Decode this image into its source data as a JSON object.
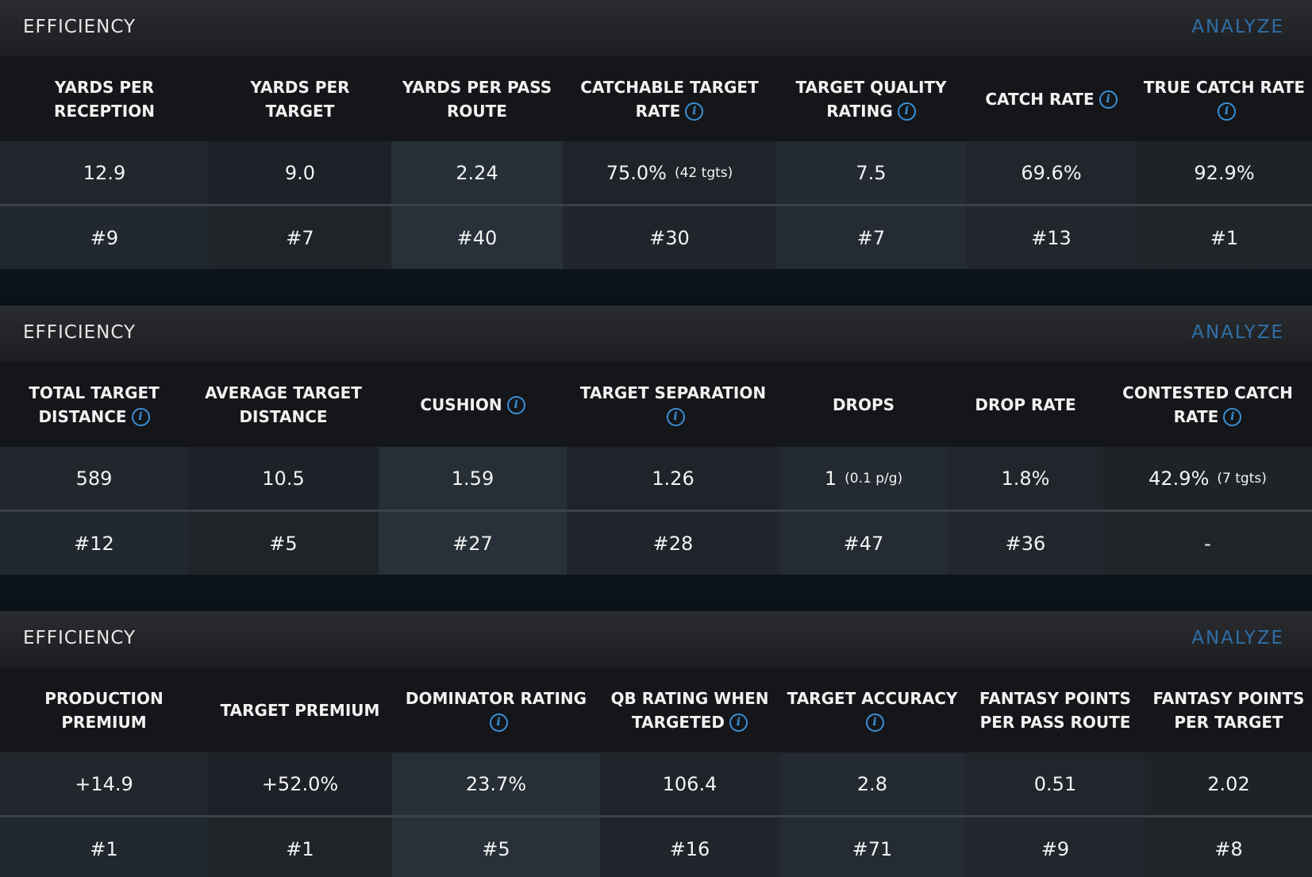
{
  "panels": [
    {
      "title": "EFFICIENCY",
      "action": "ANALYZE",
      "columns": [
        {
          "label": "YARDS PER RECEPTION",
          "info": false
        },
        {
          "label": "YARDS PER TARGET",
          "info": false
        },
        {
          "label": "YARDS PER PASS ROUTE",
          "info": false
        },
        {
          "label": "CATCHABLE TARGET RATE",
          "info": true
        },
        {
          "label": "TARGET QUALITY RATING",
          "info": true
        },
        {
          "label": "CATCH RATE",
          "info": true
        },
        {
          "label": "TRUE CATCH RATE",
          "info": true
        }
      ],
      "values": [
        {
          "main": "12.9",
          "sub": ""
        },
        {
          "main": "9.0",
          "sub": ""
        },
        {
          "main": "2.24",
          "sub": ""
        },
        {
          "main": "75.0%",
          "sub": "(42 tgts)"
        },
        {
          "main": "7.5",
          "sub": ""
        },
        {
          "main": "69.6%",
          "sub": ""
        },
        {
          "main": "92.9%",
          "sub": ""
        }
      ],
      "ranks": [
        "#9",
        "#7",
        "#40",
        "#30",
        "#7",
        "#13",
        "#1"
      ]
    },
    {
      "title": "EFFICIENCY",
      "action": "ANALYZE",
      "columns": [
        {
          "label": "TOTAL TARGET DISTANCE",
          "info": true
        },
        {
          "label": "AVERAGE TARGET DISTANCE",
          "info": false
        },
        {
          "label": "CUSHION",
          "info": true
        },
        {
          "label": "TARGET SEPARATION",
          "info": true
        },
        {
          "label": "DROPS",
          "info": false
        },
        {
          "label": "DROP RATE",
          "info": false
        },
        {
          "label": "CONTESTED CATCH RATE",
          "info": true
        }
      ],
      "values": [
        {
          "main": "589",
          "sub": ""
        },
        {
          "main": "10.5",
          "sub": ""
        },
        {
          "main": "1.59",
          "sub": ""
        },
        {
          "main": "1.26",
          "sub": ""
        },
        {
          "main": "1",
          "sub": "(0.1 p/g)"
        },
        {
          "main": "1.8%",
          "sub": ""
        },
        {
          "main": "42.9%",
          "sub": "(7 tgts)"
        }
      ],
      "ranks": [
        "#12",
        "#5",
        "#27",
        "#28",
        "#47",
        "#36",
        "-"
      ]
    },
    {
      "title": "EFFICIENCY",
      "action": "ANALYZE",
      "columns": [
        {
          "label": "PRODUCTION PREMIUM",
          "info": false
        },
        {
          "label": "TARGET PREMIUM",
          "info": false
        },
        {
          "label": "DOMINATOR RATING",
          "info": true
        },
        {
          "label": "QB RATING WHEN TARGETED",
          "info": true
        },
        {
          "label": "TARGET ACCURACY",
          "info": true
        },
        {
          "label": "FANTASY POINTS PER PASS ROUTE",
          "info": false
        },
        {
          "label": "FANTASY POINTS PER TARGET",
          "info": false
        }
      ],
      "values": [
        {
          "main": "+14.9",
          "sub": ""
        },
        {
          "main": "+52.0%",
          "sub": ""
        },
        {
          "main": "23.7%",
          "sub": ""
        },
        {
          "main": "106.4",
          "sub": ""
        },
        {
          "main": "2.8",
          "sub": ""
        },
        {
          "main": "0.51",
          "sub": ""
        },
        {
          "main": "2.02",
          "sub": ""
        }
      ],
      "ranks": [
        "#1",
        "#1",
        "#5",
        "#16",
        "#71",
        "#9",
        "#8"
      ]
    }
  ],
  "colors": {
    "accent": "#2f6fa8",
    "info_icon": "#3b8fd6",
    "text": "#f3f3f3"
  },
  "icons": {
    "info": "info-icon"
  }
}
